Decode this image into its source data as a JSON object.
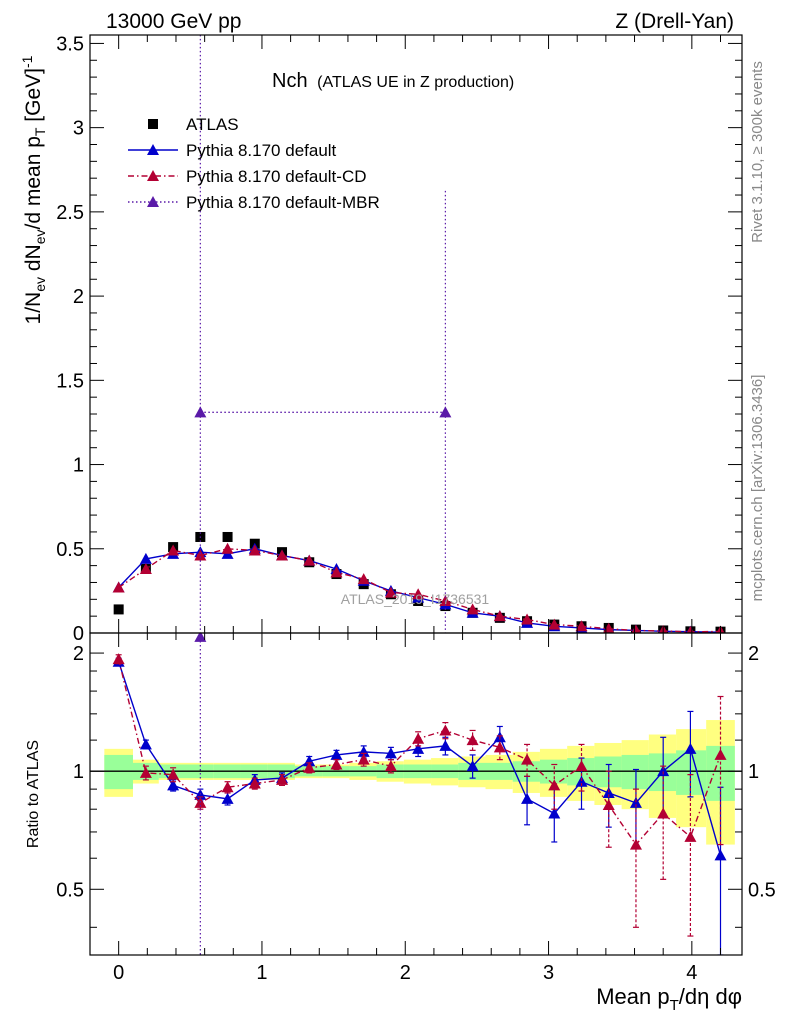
{
  "header": {
    "left": "13000 GeV pp",
    "right": "Z (Drell-Yan)"
  },
  "side_labels": {
    "rivet": "Rivet 3.1.10, ≥ 300k events",
    "mcplots": "mcplots.cern.ch [arXiv:1306.3436]"
  },
  "watermark": "ATLAS_2019_I1736531",
  "colors": {
    "atlas": "#000000",
    "default": "#0000cc",
    "cd": "#b30033",
    "mbr": "#5a1aa8",
    "band_inner": "#99ff99",
    "band_outer": "#ffff80"
  },
  "chart_data": [
    {
      "id": "main",
      "type": "scatter",
      "title": "Nch",
      "subtitle": "(ATLAS UE in Z production)",
      "ylabel": "1/N_ev dN_ev/d mean p_T [GeV]^-1",
      "ylim": [
        0,
        3.55
      ],
      "xlim": [
        -0.2,
        4.35
      ],
      "yticks": [
        0,
        0.5,
        1,
        1.5,
        2,
        2.5,
        3,
        3.5
      ],
      "ytick_labels": [
        "0",
        "0.5",
        "1",
        "1.5",
        "2",
        "2.5",
        "3",
        "3.5"
      ],
      "legend": {
        "position": "top-left",
        "entries": [
          "ATLAS",
          "Pythia 8.170 default",
          "Pythia 8.170 default-CD",
          "Pythia 8.170 default-MBR"
        ]
      },
      "series": [
        {
          "name": "ATLAS",
          "style": "square",
          "x": [
            0,
            0.19,
            0.38,
            0.57,
            0.76,
            0.95,
            1.14,
            1.33,
            1.52,
            1.71,
            1.9,
            2.09,
            2.28,
            2.47,
            2.66,
            2.85,
            3.04,
            3.23,
            3.42,
            3.61,
            3.8,
            3.99,
            4.2
          ],
          "values": [
            0.14,
            0.38,
            0.51,
            0.57,
            0.57,
            0.53,
            0.48,
            0.42,
            0.35,
            0.29,
            0.23,
            0.19,
            0.16,
            0.12,
            0.09,
            0.07,
            0.05,
            0.04,
            0.03,
            0.02,
            0.015,
            0.01,
            0.008
          ]
        },
        {
          "name": "Pythia 8.170 default",
          "style": "solid",
          "x": [
            0,
            0.19,
            0.38,
            0.57,
            0.76,
            0.95,
            1.14,
            1.33,
            1.52,
            1.71,
            1.9,
            2.09,
            2.28,
            2.47,
            2.66,
            2.85,
            3.04,
            3.23,
            3.42,
            3.61,
            3.8,
            3.99,
            4.2
          ],
          "values": [
            0.27,
            0.44,
            0.47,
            0.48,
            0.47,
            0.5,
            0.46,
            0.43,
            0.38,
            0.31,
            0.25,
            0.21,
            0.17,
            0.12,
            0.1,
            0.06,
            0.04,
            0.03,
            0.02,
            0.015,
            0.01,
            0.008,
            0.005
          ]
        },
        {
          "name": "Pythia 8.170 default-CD",
          "style": "dashdot",
          "x": [
            0,
            0.19,
            0.38,
            0.57,
            0.76,
            0.95,
            1.14,
            1.33,
            1.52,
            1.71,
            1.9,
            2.09,
            2.28,
            2.47,
            2.66,
            2.85,
            3.04,
            3.23,
            3.42,
            3.61,
            3.8,
            3.99,
            4.2
          ],
          "values": [
            0.27,
            0.38,
            0.49,
            0.46,
            0.5,
            0.49,
            0.46,
            0.43,
            0.36,
            0.32,
            0.24,
            0.23,
            0.19,
            0.14,
            0.1,
            0.08,
            0.05,
            0.04,
            0.025,
            0.015,
            0.012,
            0.007,
            0.009
          ]
        },
        {
          "name": "Pythia 8.170 default-MBR",
          "style": "dotted",
          "x": [
            0.57,
            2.28
          ],
          "values": [
            1.31,
            1.31
          ],
          "yerr": [
            3.0,
            1.32
          ]
        }
      ]
    },
    {
      "id": "ratio",
      "type": "scatter",
      "ylabel": "Ratio to ATLAS",
      "xlabel": "Mean p_T/dη dφ",
      "ylim": [
        0.34,
        2.25
      ],
      "xlim": [
        -0.2,
        4.35
      ],
      "yticks": [
        0.5,
        1,
        2
      ],
      "ytick_labels": [
        "0.5",
        "1",
        "2"
      ],
      "xticks": [
        0,
        1,
        2,
        3,
        4
      ],
      "xtick_labels": [
        "0",
        "1",
        "2",
        "3",
        "4"
      ],
      "reference": 1,
      "band_edges": [
        -0.1,
        0.1,
        0.28,
        0.47,
        0.66,
        0.85,
        1.04,
        1.23,
        1.42,
        1.61,
        1.8,
        1.99,
        2.18,
        2.37,
        2.56,
        2.75,
        2.94,
        3.13,
        3.32,
        3.51,
        3.7,
        3.89,
        4.1,
        4.3
      ],
      "band_inner": [
        0.1,
        0.05,
        0.04,
        0.04,
        0.04,
        0.04,
        0.04,
        0.03,
        0.03,
        0.03,
        0.04,
        0.04,
        0.04,
        0.05,
        0.05,
        0.06,
        0.07,
        0.08,
        0.09,
        0.1,
        0.11,
        0.13,
        0.16
      ],
      "band_outer": [
        0.14,
        0.07,
        0.05,
        0.05,
        0.05,
        0.05,
        0.05,
        0.04,
        0.04,
        0.05,
        0.06,
        0.07,
        0.08,
        0.09,
        0.1,
        0.12,
        0.14,
        0.16,
        0.18,
        0.2,
        0.24,
        0.28,
        0.35
      ],
      "series": [
        {
          "name": "Pythia 8.170 default",
          "x": [
            0,
            0.19,
            0.38,
            0.57,
            0.76,
            0.95,
            1.14,
            1.33,
            1.52,
            1.71,
            1.9,
            2.09,
            2.28,
            2.47,
            2.66,
            2.85,
            3.04,
            3.23,
            3.42,
            3.61,
            3.8,
            3.99,
            4.2
          ],
          "values": [
            1.9,
            1.17,
            0.92,
            0.87,
            0.85,
            0.95,
            0.96,
            1.06,
            1.1,
            1.12,
            1.11,
            1.14,
            1.16,
            1.03,
            1.22,
            0.85,
            0.78,
            0.94,
            0.88,
            0.83,
            1.0,
            1.14,
            0.61
          ],
          "errors": [
            0.04,
            0.03,
            0.03,
            0.03,
            0.03,
            0.03,
            0.03,
            0.03,
            0.03,
            0.04,
            0.04,
            0.05,
            0.06,
            0.07,
            0.08,
            0.12,
            0.12,
            0.14,
            0.16,
            0.18,
            0.22,
            0.28,
            0.3
          ]
        },
        {
          "name": "Pythia 8.170 default-CD",
          "x": [
            0,
            0.19,
            0.38,
            0.57,
            0.76,
            0.95,
            1.14,
            1.33,
            1.52,
            1.71,
            1.9,
            2.09,
            2.28,
            2.47,
            2.66,
            2.85,
            3.04,
            3.23,
            3.42,
            3.61,
            3.8,
            3.99,
            4.2
          ],
          "values": [
            1.93,
            0.99,
            0.98,
            0.83,
            0.91,
            0.93,
            0.95,
            1.02,
            1.04,
            1.07,
            1.03,
            1.21,
            1.27,
            1.2,
            1.15,
            1.07,
            0.92,
            1.03,
            0.82,
            0.65,
            0.78,
            0.68,
            1.1
          ],
          "errors": [
            0.05,
            0.04,
            0.04,
            0.03,
            0.03,
            0.03,
            0.03,
            0.03,
            0.03,
            0.04,
            0.04,
            0.05,
            0.06,
            0.07,
            0.08,
            0.1,
            0.12,
            0.14,
            0.18,
            0.25,
            0.25,
            0.3,
            0.45
          ]
        },
        {
          "name": "Pythia 8.170 default-MBR",
          "x": [
            0.57
          ],
          "values": [
            2.2
          ],
          "errors": [
            2.0
          ]
        }
      ]
    }
  ]
}
